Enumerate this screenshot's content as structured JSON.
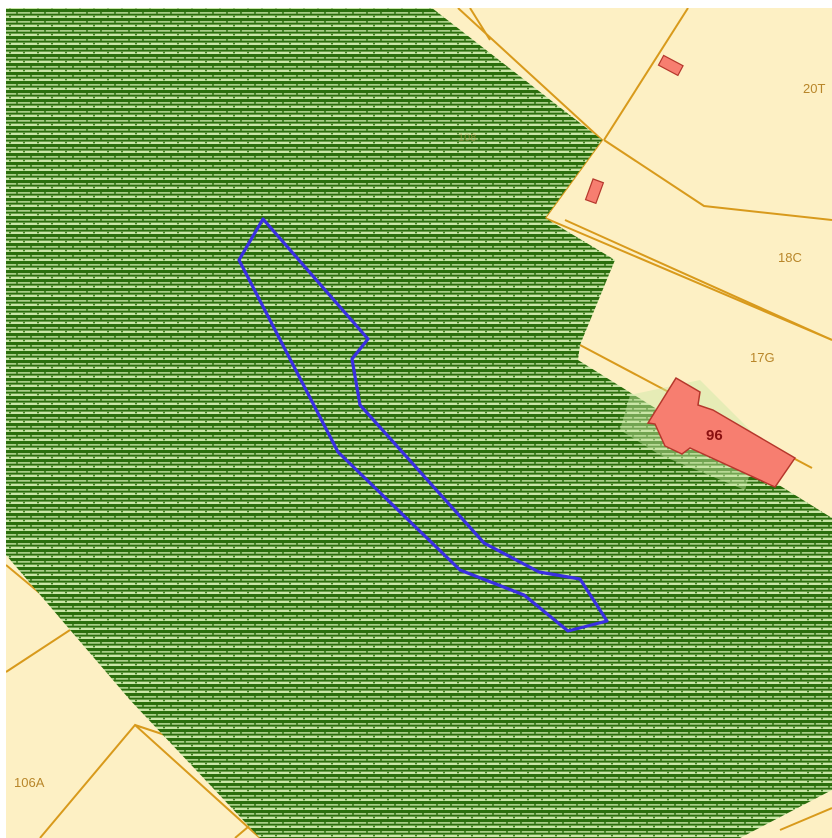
{
  "colors": {
    "parcel_fill": "#fdf0c4",
    "parcel_border": "#d89a1c",
    "forest_dark": "#2a6e0c",
    "forest_light": "#c9e6a7",
    "building_fill": "#f77e70",
    "building_border": "#b5372c",
    "selection_outline": "#3a2fe0",
    "background": "#ffffff"
  },
  "parcels": {
    "p20T": "20T",
    "p18C": "18C",
    "p17G": "17G",
    "p106A": "106A",
    "faint_label": "108"
  },
  "building": {
    "label": "96"
  },
  "icons": {
    "building": "building-icon",
    "selection": "selected-area-outline"
  }
}
